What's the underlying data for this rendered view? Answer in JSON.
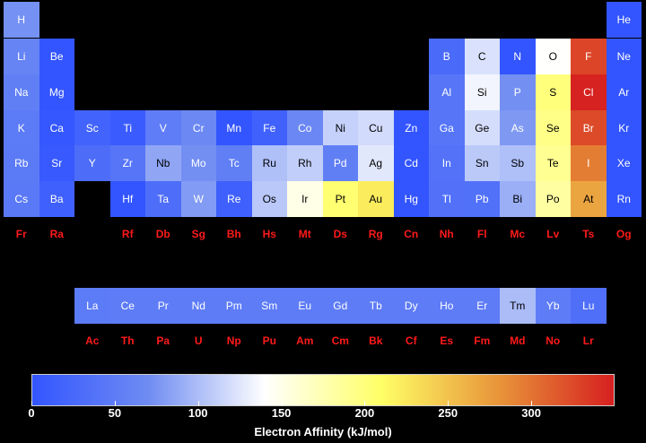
{
  "chart_data": {
    "type": "heatmap",
    "title": "",
    "colorbar": {
      "label": "Electron Affinity (kJ/mol)",
      "range": [
        0,
        350
      ],
      "ticks": [
        0,
        50,
        100,
        150,
        200,
        250,
        300
      ],
      "colors": [
        "#3355ff",
        "#6f8cf2",
        "#ffffff",
        "#ffff66",
        "#e8963a",
        "#d62020"
      ],
      "nodata_color": "#ff1a1a"
    },
    "elements": [
      {
        "symbol": "H",
        "period": 1,
        "group": 1,
        "value": 73
      },
      {
        "symbol": "He",
        "period": 1,
        "group": 18,
        "value": 0
      },
      {
        "symbol": "Li",
        "period": 2,
        "group": 1,
        "value": 60
      },
      {
        "symbol": "Be",
        "period": 2,
        "group": 2,
        "value": 0
      },
      {
        "symbol": "B",
        "period": 2,
        "group": 13,
        "value": 27
      },
      {
        "symbol": "C",
        "period": 2,
        "group": 14,
        "value": 122
      },
      {
        "symbol": "N",
        "period": 2,
        "group": 15,
        "value": 0
      },
      {
        "symbol": "O",
        "period": 2,
        "group": 16,
        "value": 141
      },
      {
        "symbol": "F",
        "period": 2,
        "group": 17,
        "value": 328
      },
      {
        "symbol": "Ne",
        "period": 2,
        "group": 18,
        "value": 0
      },
      {
        "symbol": "Na",
        "period": 3,
        "group": 1,
        "value": 53
      },
      {
        "symbol": "Mg",
        "period": 3,
        "group": 2,
        "value": 0
      },
      {
        "symbol": "Al",
        "period": 3,
        "group": 13,
        "value": 42
      },
      {
        "symbol": "Si",
        "period": 3,
        "group": 14,
        "value": 134
      },
      {
        "symbol": "P",
        "period": 3,
        "group": 15,
        "value": 72
      },
      {
        "symbol": "S",
        "period": 3,
        "group": 16,
        "value": 200
      },
      {
        "symbol": "Cl",
        "period": 3,
        "group": 17,
        "value": 349
      },
      {
        "symbol": "Ar",
        "period": 3,
        "group": 18,
        "value": 0
      },
      {
        "symbol": "K",
        "period": 4,
        "group": 1,
        "value": 48
      },
      {
        "symbol": "Ca",
        "period": 4,
        "group": 2,
        "value": 2
      },
      {
        "symbol": "Sc",
        "period": 4,
        "group": 3,
        "value": 18
      },
      {
        "symbol": "Ti",
        "period": 4,
        "group": 4,
        "value": 8
      },
      {
        "symbol": "V",
        "period": 4,
        "group": 5,
        "value": 51
      },
      {
        "symbol": "Cr",
        "period": 4,
        "group": 6,
        "value": 65
      },
      {
        "symbol": "Mn",
        "period": 4,
        "group": 7,
        "value": 0
      },
      {
        "symbol": "Fe",
        "period": 4,
        "group": 8,
        "value": 15
      },
      {
        "symbol": "Co",
        "period": 4,
        "group": 9,
        "value": 64
      },
      {
        "symbol": "Ni",
        "period": 4,
        "group": 10,
        "value": 112
      },
      {
        "symbol": "Cu",
        "period": 4,
        "group": 11,
        "value": 118
      },
      {
        "symbol": "Zn",
        "period": 4,
        "group": 12,
        "value": 0
      },
      {
        "symbol": "Ga",
        "period": 4,
        "group": 13,
        "value": 41
      },
      {
        "symbol": "Ge",
        "period": 4,
        "group": 14,
        "value": 119
      },
      {
        "symbol": "As",
        "period": 4,
        "group": 15,
        "value": 78
      },
      {
        "symbol": "Se",
        "period": 4,
        "group": 16,
        "value": 195
      },
      {
        "symbol": "Br",
        "period": 4,
        "group": 17,
        "value": 325
      },
      {
        "symbol": "Kr",
        "period": 4,
        "group": 18,
        "value": 0
      },
      {
        "symbol": "Rb",
        "period": 5,
        "group": 1,
        "value": 47
      },
      {
        "symbol": "Sr",
        "period": 5,
        "group": 2,
        "value": 5
      },
      {
        "symbol": "Y",
        "period": 5,
        "group": 3,
        "value": 30
      },
      {
        "symbol": "Zr",
        "period": 5,
        "group": 4,
        "value": 41
      },
      {
        "symbol": "Nb",
        "period": 5,
        "group": 5,
        "value": 86
      },
      {
        "symbol": "Mo",
        "period": 5,
        "group": 6,
        "value": 72
      },
      {
        "symbol": "Tc",
        "period": 5,
        "group": 7,
        "value": 53
      },
      {
        "symbol": "Ru",
        "period": 5,
        "group": 8,
        "value": 101
      },
      {
        "symbol": "Rh",
        "period": 5,
        "group": 9,
        "value": 110
      },
      {
        "symbol": "Pd",
        "period": 5,
        "group": 10,
        "value": 54
      },
      {
        "symbol": "Ag",
        "period": 5,
        "group": 11,
        "value": 126
      },
      {
        "symbol": "Cd",
        "period": 5,
        "group": 12,
        "value": 0
      },
      {
        "symbol": "In",
        "period": 5,
        "group": 13,
        "value": 37
      },
      {
        "symbol": "Sn",
        "period": 5,
        "group": 14,
        "value": 107
      },
      {
        "symbol": "Sb",
        "period": 5,
        "group": 15,
        "value": 101
      },
      {
        "symbol": "Te",
        "period": 5,
        "group": 16,
        "value": 190
      },
      {
        "symbol": "I",
        "period": 5,
        "group": 17,
        "value": 295
      },
      {
        "symbol": "Xe",
        "period": 5,
        "group": 18,
        "value": 0
      },
      {
        "symbol": "Cs",
        "period": 6,
        "group": 1,
        "value": 46
      },
      {
        "symbol": "Ba",
        "period": 6,
        "group": 2,
        "value": 14
      },
      {
        "symbol": "Hf",
        "period": 6,
        "group": 4,
        "value": 0
      },
      {
        "symbol": "Ta",
        "period": 6,
        "group": 5,
        "value": 31
      },
      {
        "symbol": "W",
        "period": 6,
        "group": 6,
        "value": 79
      },
      {
        "symbol": "Re",
        "period": 6,
        "group": 7,
        "value": 14
      },
      {
        "symbol": "Os",
        "period": 6,
        "group": 8,
        "value": 106
      },
      {
        "symbol": "Ir",
        "period": 6,
        "group": 9,
        "value": 151
      },
      {
        "symbol": "Pt",
        "period": 6,
        "group": 10,
        "value": 205
      },
      {
        "symbol": "Au",
        "period": 6,
        "group": 11,
        "value": 223
      },
      {
        "symbol": "Hg",
        "period": 6,
        "group": 12,
        "value": 0
      },
      {
        "symbol": "Tl",
        "period": 6,
        "group": 13,
        "value": 36
      },
      {
        "symbol": "Pb",
        "period": 6,
        "group": 14,
        "value": 35
      },
      {
        "symbol": "Bi",
        "period": 6,
        "group": 15,
        "value": 91
      },
      {
        "symbol": "Po",
        "period": 6,
        "group": 16,
        "value": 183
      },
      {
        "symbol": "At",
        "period": 6,
        "group": 17,
        "value": 270
      },
      {
        "symbol": "Rn",
        "period": 6,
        "group": 18,
        "value": 0
      },
      {
        "symbol": "Fr",
        "period": 7,
        "group": 1,
        "value": null
      },
      {
        "symbol": "Ra",
        "period": 7,
        "group": 2,
        "value": null
      },
      {
        "symbol": "Rf",
        "period": 7,
        "group": 4,
        "value": null
      },
      {
        "symbol": "Db",
        "period": 7,
        "group": 5,
        "value": null
      },
      {
        "symbol": "Sg",
        "period": 7,
        "group": 6,
        "value": null
      },
      {
        "symbol": "Bh",
        "period": 7,
        "group": 7,
        "value": null
      },
      {
        "symbol": "Hs",
        "period": 7,
        "group": 8,
        "value": null
      },
      {
        "symbol": "Mt",
        "period": 7,
        "group": 9,
        "value": null
      },
      {
        "symbol": "Ds",
        "period": 7,
        "group": 10,
        "value": null
      },
      {
        "symbol": "Rg",
        "period": 7,
        "group": 11,
        "value": null
      },
      {
        "symbol": "Cn",
        "period": 7,
        "group": 12,
        "value": null
      },
      {
        "symbol": "Nh",
        "period": 7,
        "group": 13,
        "value": null
      },
      {
        "symbol": "Fl",
        "period": 7,
        "group": 14,
        "value": null
      },
      {
        "symbol": "Mc",
        "period": 7,
        "group": 15,
        "value": null
      },
      {
        "symbol": "Lv",
        "period": 7,
        "group": 16,
        "value": null
      },
      {
        "symbol": "Ts",
        "period": 7,
        "group": 17,
        "value": null
      },
      {
        "symbol": "Og",
        "period": 7,
        "group": 18,
        "value": null
      },
      {
        "symbol": "La",
        "period": 9,
        "group": 3,
        "value": 48
      },
      {
        "symbol": "Ce",
        "period": 9,
        "group": 4,
        "value": 50
      },
      {
        "symbol": "Pr",
        "period": 9,
        "group": 5,
        "value": 50
      },
      {
        "symbol": "Nd",
        "period": 9,
        "group": 6,
        "value": 50
      },
      {
        "symbol": "Pm",
        "period": 9,
        "group": 7,
        "value": 50
      },
      {
        "symbol": "Sm",
        "period": 9,
        "group": 8,
        "value": 50
      },
      {
        "symbol": "Eu",
        "period": 9,
        "group": 9,
        "value": 50
      },
      {
        "symbol": "Gd",
        "period": 9,
        "group": 10,
        "value": 50
      },
      {
        "symbol": "Tb",
        "period": 9,
        "group": 11,
        "value": 50
      },
      {
        "symbol": "Dy",
        "period": 9,
        "group": 12,
        "value": 50
      },
      {
        "symbol": "Ho",
        "period": 9,
        "group": 13,
        "value": 50
      },
      {
        "symbol": "Er",
        "period": 9,
        "group": 14,
        "value": 50
      },
      {
        "symbol": "Tm",
        "period": 9,
        "group": 15,
        "value": 99
      },
      {
        "symbol": "Yb",
        "period": 9,
        "group": 16,
        "value": 50
      },
      {
        "symbol": "Lu",
        "period": 9,
        "group": 17,
        "value": 33
      },
      {
        "symbol": "Ac",
        "period": 10,
        "group": 3,
        "value": null
      },
      {
        "symbol": "Th",
        "period": 10,
        "group": 4,
        "value": null
      },
      {
        "symbol": "Pa",
        "period": 10,
        "group": 5,
        "value": null
      },
      {
        "symbol": "U",
        "period": 10,
        "group": 6,
        "value": null
      },
      {
        "symbol": "Np",
        "period": 10,
        "group": 7,
        "value": null
      },
      {
        "symbol": "Pu",
        "period": 10,
        "group": 8,
        "value": null
      },
      {
        "symbol": "Am",
        "period": 10,
        "group": 9,
        "value": null
      },
      {
        "symbol": "Cm",
        "period": 10,
        "group": 10,
        "value": null
      },
      {
        "symbol": "Bk",
        "period": 10,
        "group": 11,
        "value": null
      },
      {
        "symbol": "Cf",
        "period": 10,
        "group": 12,
        "value": null
      },
      {
        "symbol": "Es",
        "period": 10,
        "group": 13,
        "value": null
      },
      {
        "symbol": "Fm",
        "period": 10,
        "group": 14,
        "value": null
      },
      {
        "symbol": "Md",
        "period": 10,
        "group": 15,
        "value": null
      },
      {
        "symbol": "No",
        "period": 10,
        "group": 16,
        "value": null
      },
      {
        "symbol": "Lr",
        "period": 10,
        "group": 17,
        "value": null
      }
    ]
  }
}
